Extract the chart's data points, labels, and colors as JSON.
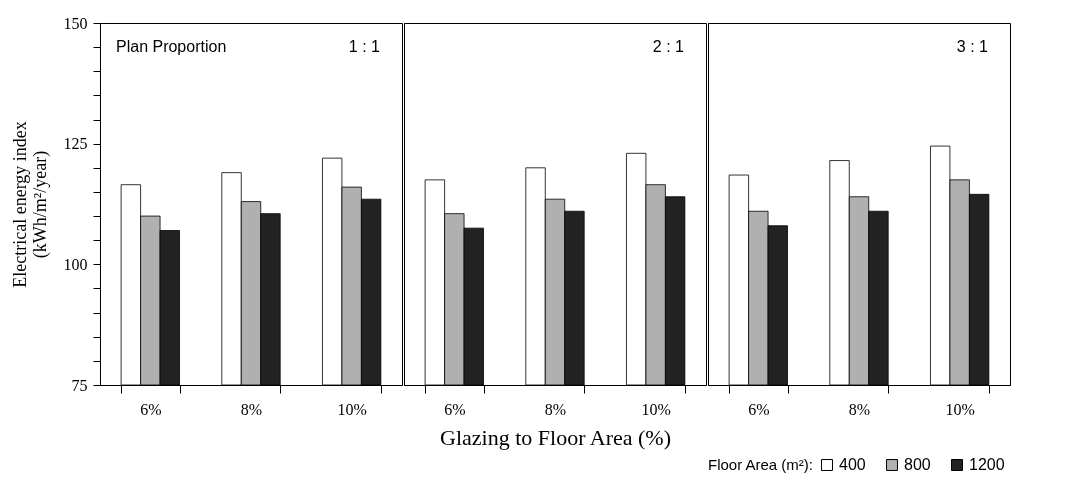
{
  "chart_data": [
    {
      "type": "bar",
      "categories": [
        "6%",
        "8%",
        "10%"
      ],
      "ylabel": "Electrical energy index\n(kWh/m²/year)",
      "annotations": [
        "Plan Proportion",
        "1 : 1"
      ],
      "series": [
        {
          "color": "#ffffff",
          "values": [
            116.5,
            119,
            122
          ]
        },
        {
          "color": "#b0b0b0",
          "values": [
            110,
            113,
            116
          ]
        },
        {
          "color": "#222222",
          "values": [
            107,
            110.5,
            113.5
          ]
        }
      ],
      "ylim": [
        75,
        150
      ],
      "yticks": [
        75,
        {
          "value": 80,
          "label": null
        },
        {
          "value": 85,
          "label": null
        },
        {
          "value": 90,
          "label": null
        },
        {
          "value": 95,
          "label": null
        },
        100,
        {
          "value": 105,
          "label": null
        },
        {
          "value": 110,
          "label": null
        },
        {
          "value": 115,
          "label": null
        },
        {
          "value": 120,
          "label": null
        },
        125,
        {
          "value": 130,
          "label": null
        },
        {
          "value": 135,
          "label": null
        },
        {
          "value": 140,
          "label": null
        },
        {
          "value": 145,
          "label": null
        },
        150
      ]
    },
    {
      "type": "bar",
      "categories": [
        "6%",
        "8%",
        "10%"
      ],
      "xlabel": "Glazing to Floor Area (%)",
      "annotations": [
        "2 : 1"
      ],
      "series": [
        {
          "color": "#ffffff",
          "values": [
            117.5,
            120,
            123
          ]
        },
        {
          "color": "#b0b0b0",
          "values": [
            110.5,
            113.5,
            116.5
          ]
        },
        {
          "color": "#222222",
          "values": [
            107.5,
            111,
            114
          ]
        }
      ],
      "ylim": [
        75,
        150
      ],
      "tick_labels": "x"
    },
    {
      "type": "bar",
      "categories": [
        "6%",
        "8%",
        "10%"
      ],
      "annotations": [
        "3 : 1"
      ],
      "legend": "bottom right",
      "legend_title": "Floor Area (m²):",
      "series": [
        {
          "name": "400",
          "color": "#ffffff",
          "values": [
            118.5,
            121.5,
            124.5
          ]
        },
        {
          "name": "800",
          "color": "#b0b0b0",
          "values": [
            111,
            114,
            117.5
          ]
        },
        {
          "name": "1200",
          "color": "#222222",
          "values": [
            108,
            111,
            114.5
          ]
        }
      ],
      "ylim": [
        75,
        150
      ],
      "tick_labels": "x"
    }
  ]
}
